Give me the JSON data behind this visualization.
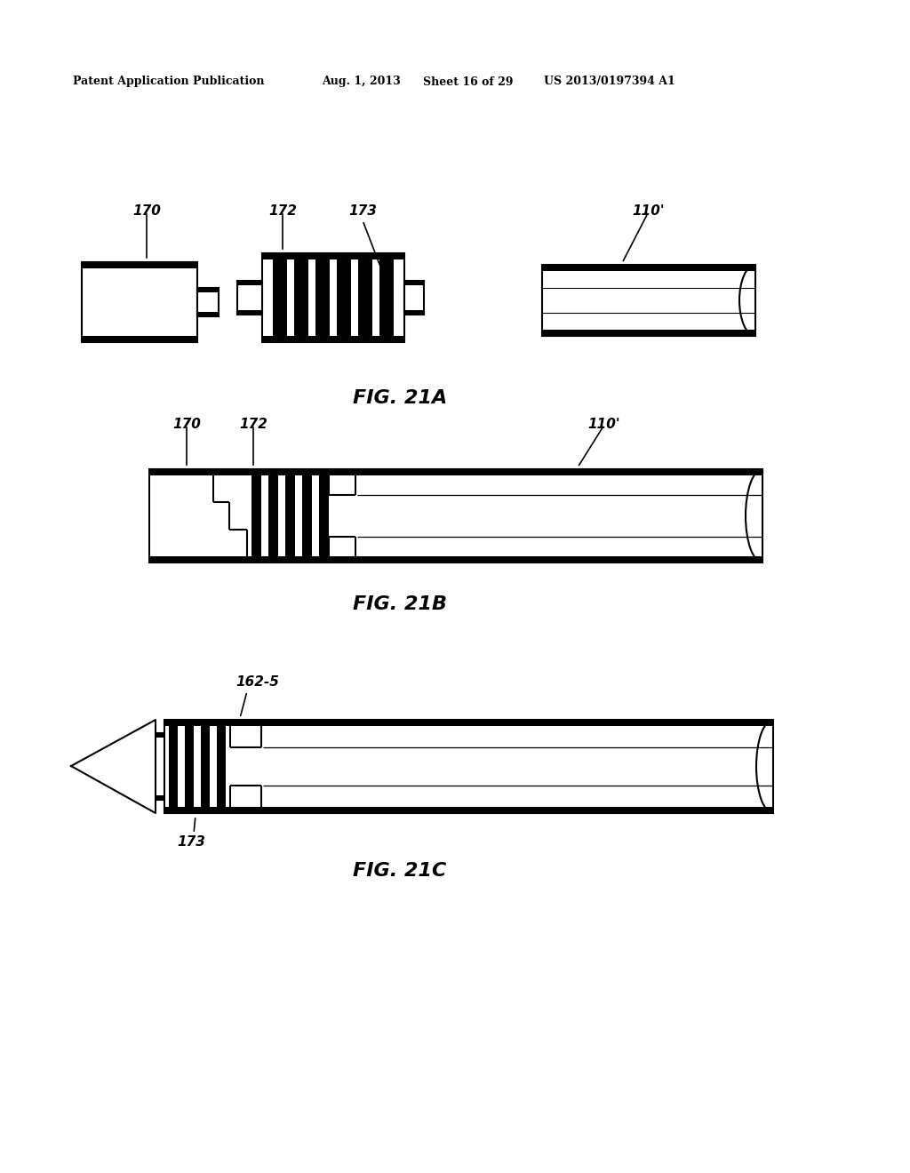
{
  "bg_color": "#ffffff",
  "header_text": "Patent Application Publication",
  "header_date": "Aug. 1, 2013",
  "header_sheet": "Sheet 16 of 29",
  "header_patent": "US 2013/0197394 A1",
  "fig21a_label": "FIG. 21A",
  "fig21b_label": "FIG. 21B",
  "fig21c_label": "FIG. 21C",
  "line_color": "#000000",
  "lw": 1.5,
  "lw_thick": 3.0,
  "fig_width": 1024,
  "fig_height": 1320
}
